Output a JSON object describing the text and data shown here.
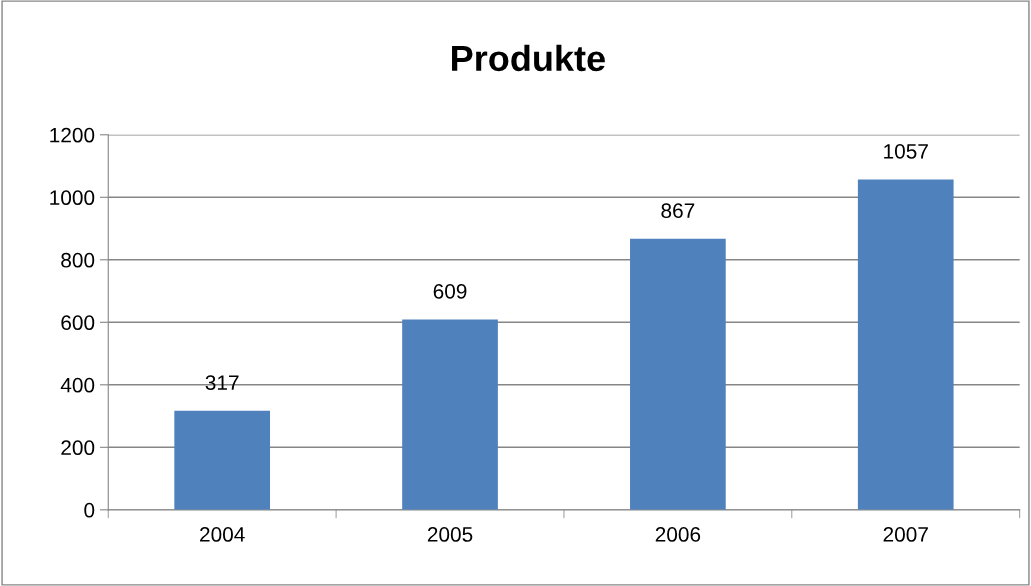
{
  "chart_data": {
    "type": "bar",
    "title": "Produkte",
    "categories": [
      "2004",
      "2005",
      "2006",
      "2007"
    ],
    "values": [
      317,
      609,
      867,
      1057
    ],
    "color": "#4f81bd",
    "ylim": [
      0,
      1200
    ],
    "yticks": [
      0,
      200,
      400,
      600,
      800,
      1000,
      1200
    ],
    "grid": "y",
    "data_labels": true
  }
}
